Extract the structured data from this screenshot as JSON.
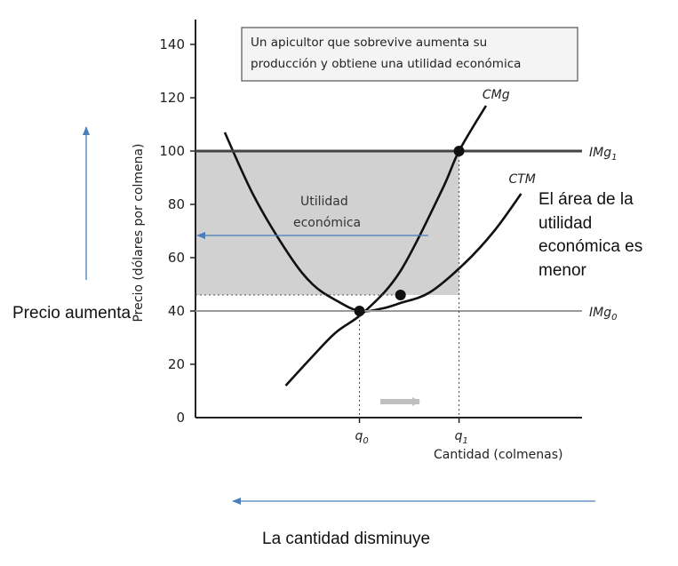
{
  "chart_data": {
    "type": "line",
    "ylabel": "Precio (dólares por colmena)",
    "xlabel": "Cantidad (colmenas)",
    "ylim": [
      0,
      140
    ],
    "y_ticks": [
      "140",
      "120",
      "100",
      "80",
      "60",
      "40",
      "20",
      "0"
    ],
    "x_ticks": [
      {
        "label": "q",
        "sub": "0"
      },
      {
        "label": "q",
        "sub": "1"
      }
    ],
    "note_box": [
      "Un apicultor que sobrevive aumenta su",
      "producción y obtiene una utilidad económica"
    ],
    "shaded_area_label": [
      "Utilidad",
      "económica"
    ],
    "series": [
      {
        "name": "CMg",
        "x": [
          0.77,
          1.0,
          1.2,
          1.45,
          1.75,
          2.1,
          2.25,
          2.48
        ],
        "y": [
          12,
          23,
          32,
          40,
          55,
          85,
          100,
          117
        ]
      },
      {
        "name": "CTM",
        "x": [
          0.25,
          0.5,
          0.8,
          1.0,
          1.2,
          1.4,
          1.6,
          1.75,
          2.0,
          2.3,
          2.55,
          2.78
        ],
        "y": [
          107,
          83,
          61,
          50,
          44,
          40,
          41,
          43,
          47,
          58,
          70,
          84
        ]
      },
      {
        "name": "IMg",
        "sub": "1",
        "x": [
          0.0,
          3.3
        ],
        "y": [
          100,
          100
        ]
      },
      {
        "name": "IMg",
        "sub": "0",
        "x": [
          0.0,
          3.3
        ],
        "y": [
          40,
          40
        ]
      }
    ],
    "points": [
      {
        "x": 1.4,
        "y": 40
      },
      {
        "x": 1.75,
        "y": 46
      },
      {
        "x": 2.25,
        "y": 100
      }
    ]
  },
  "annotations": {
    "right": "El área de la utilidad económica es menor",
    "left": "Precio aumenta",
    "bottom": "La cantidad disminuye"
  },
  "colors": {
    "arrow": "#4a7ebb",
    "shade": "#c8c8c8",
    "income_line": "#444444",
    "income_line_low": "#9a9a9a"
  }
}
